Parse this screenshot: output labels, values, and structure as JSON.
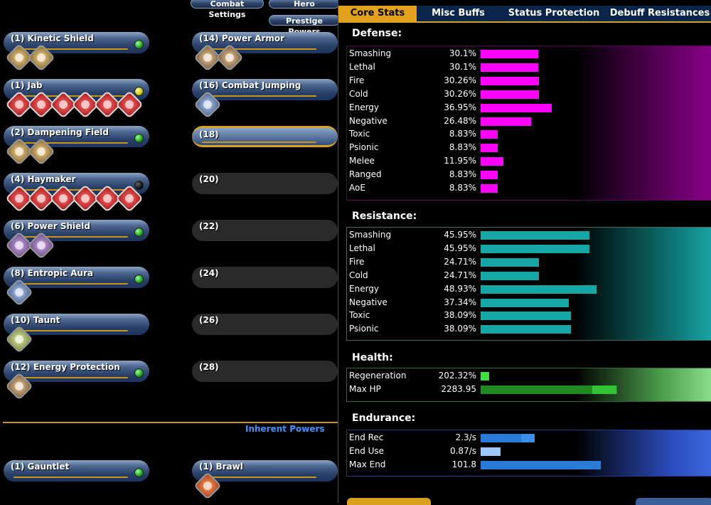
{
  "top_buttons": {
    "combat_settings": "Combat Settings",
    "hero": "Hero",
    "prestige_powers": "Prestige Powers"
  },
  "left_slots": [
    {
      "label": "(1) Kinetic Shield",
      "status": "green",
      "enhancements": [
        "gold",
        "gold"
      ]
    },
    {
      "label": "(1) Jab",
      "status": "yellow",
      "enhancements": [
        "red",
        "red",
        "red",
        "red",
        "red",
        "red"
      ]
    },
    {
      "label": "(2) Dampening Field",
      "status": "green",
      "enhancements": [
        "gold",
        "gold"
      ]
    },
    {
      "label": "(4) Haymaker",
      "status": "black",
      "enhancements": [
        "red",
        "red",
        "red",
        "red",
        "red",
        "red"
      ]
    },
    {
      "label": "(6) Power Shield",
      "status": "green",
      "enhancements": [
        "purple",
        "purple"
      ]
    },
    {
      "label": "(8) Entropic Aura",
      "status": "green",
      "enhancements": [
        "blue"
      ]
    },
    {
      "label": "(10) Taunt",
      "status": "",
      "enhancements": [
        "olive"
      ]
    },
    {
      "label": "(12) Energy Protection",
      "status": "green",
      "enhancements": [
        "brown"
      ]
    }
  ],
  "right_slots": [
    {
      "label": "(14) Power Armor",
      "style": "filled",
      "enhancements": [
        "brown",
        "brown"
      ]
    },
    {
      "label": "(16) Combat Jumping",
      "style": "filled",
      "enhancements": [
        "blue"
      ]
    },
    {
      "label": "(18)",
      "style": "gold",
      "enhancements": []
    },
    {
      "label": "(20)",
      "style": "empty",
      "enhancements": []
    },
    {
      "label": "(22)",
      "style": "empty",
      "enhancements": []
    },
    {
      "label": "(24)",
      "style": "empty",
      "enhancements": []
    },
    {
      "label": "(26)",
      "style": "empty",
      "enhancements": []
    },
    {
      "label": "(28)",
      "style": "empty",
      "enhancements": []
    }
  ],
  "inherent_powers_label": "Inherent Powers",
  "inherent_slots": [
    {
      "label": "(1) Gauntlet",
      "status": "green"
    },
    {
      "label": "(1) Brawl",
      "enhancements": [
        "orange"
      ]
    }
  ],
  "tabs": [
    "Core Stats",
    "Misc Buffs",
    "Status Protection",
    "Debuff Resistances"
  ],
  "active_tab": "Core Stats",
  "colors": {
    "defense": "#ff00ff",
    "resistance": "#16a6a6",
    "health": "#1f8a1f",
    "endurance": "#2a7bd6",
    "tab_active": "#e2a21d"
  },
  "defense": {
    "title": "Defense:",
    "rows": [
      {
        "name": "Smashing",
        "value": "30.1%",
        "pct": 30.1
      },
      {
        "name": "Lethal",
        "value": "30.1%",
        "pct": 30.1
      },
      {
        "name": "Fire",
        "value": "30.26%",
        "pct": 30.26
      },
      {
        "name": "Cold",
        "value": "30.26%",
        "pct": 30.26
      },
      {
        "name": "Energy",
        "value": "36.95%",
        "pct": 36.95
      },
      {
        "name": "Negative",
        "value": "26.48%",
        "pct": 26.48
      },
      {
        "name": "Toxic",
        "value": "8.83%",
        "pct": 8.83
      },
      {
        "name": "Psionic",
        "value": "8.83%",
        "pct": 8.83
      },
      {
        "name": "Melee",
        "value": "11.95%",
        "pct": 11.95
      },
      {
        "name": "Ranged",
        "value": "8.83%",
        "pct": 8.83
      },
      {
        "name": "AoE",
        "value": "8.83%",
        "pct": 8.83
      }
    ]
  },
  "resistance": {
    "title": "Resistance:",
    "rows": [
      {
        "name": "Smashing",
        "value": "45.95%",
        "pct": 45.95
      },
      {
        "name": "Lethal",
        "value": "45.95%",
        "pct": 45.95
      },
      {
        "name": "Fire",
        "value": "24.71%",
        "pct": 24.71
      },
      {
        "name": "Cold",
        "value": "24.71%",
        "pct": 24.71
      },
      {
        "name": "Energy",
        "value": "48.93%",
        "pct": 48.93
      },
      {
        "name": "Negative",
        "value": "37.34%",
        "pct": 37.34
      },
      {
        "name": "Toxic",
        "value": "38.09%",
        "pct": 38.09
      },
      {
        "name": "Psionic",
        "value": "38.09%",
        "pct": 38.09
      }
    ]
  },
  "health": {
    "title": "Health:",
    "rows": [
      {
        "name": "Regeneration",
        "value": "202.32%",
        "fraction": 0.05
      },
      {
        "name": "Max HP",
        "value": "2283.95",
        "fraction": 0.8
      }
    ]
  },
  "endurance": {
    "title": "Endurance:",
    "rows": [
      {
        "name": "End Rec",
        "value": "2.3/s",
        "fraction": 0.32
      },
      {
        "name": "End Use",
        "value": "0.87/s",
        "fraction": 0.12
      },
      {
        "name": "Max End",
        "value": "101.8",
        "fraction": 0.73
      }
    ]
  }
}
